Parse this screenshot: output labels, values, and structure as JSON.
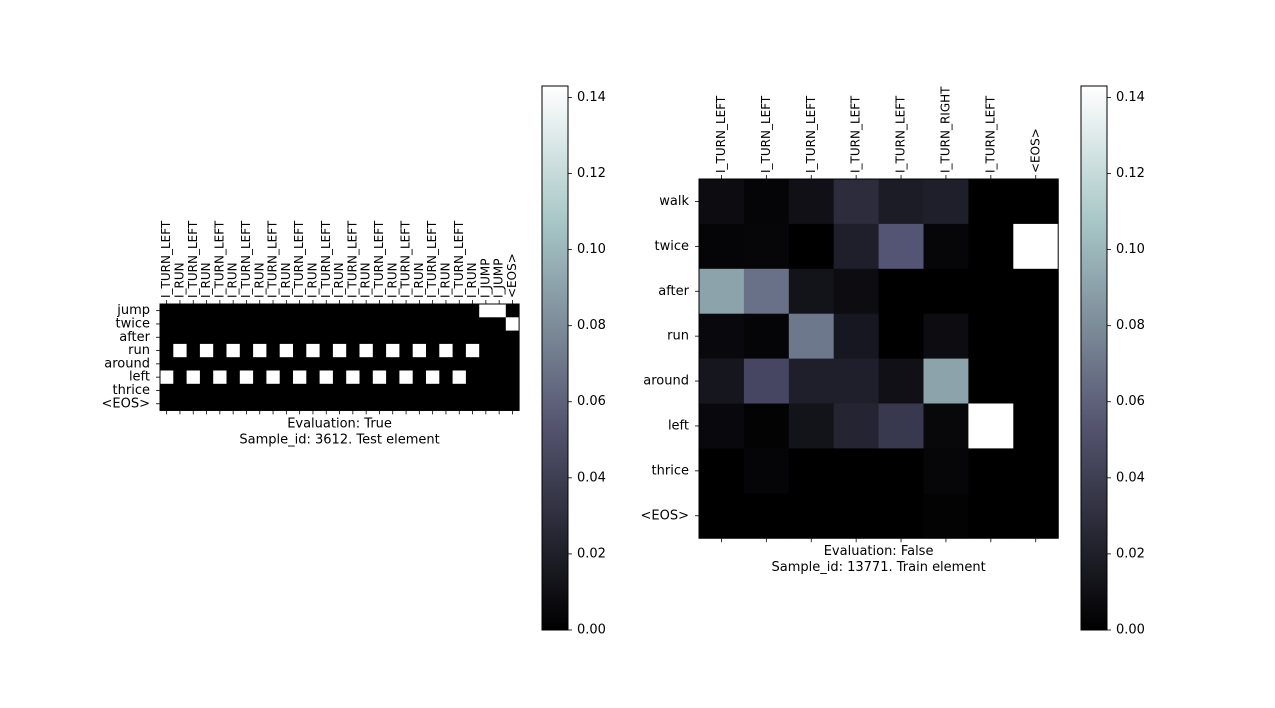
{
  "chart_data": [
    {
      "type": "heatmap",
      "x_labels": [
        "I_TURN_LEFT",
        "I_RUN",
        "I_TURN_LEFT",
        "I_RUN",
        "I_TURN_LEFT",
        "I_RUN",
        "I_TURN_LEFT",
        "I_RUN",
        "I_TURN_LEFT",
        "I_RUN",
        "I_TURN_LEFT",
        "I_RUN",
        "I_TURN_LEFT",
        "I_RUN",
        "I_TURN_LEFT",
        "I_RUN",
        "I_TURN_LEFT",
        "I_RUN",
        "I_TURN_LEFT",
        "I_RUN",
        "I_TURN_LEFT",
        "I_RUN",
        "I_TURN_LEFT",
        "I_RUN",
        "I_JUMP",
        "I_JUMP",
        "<EOS>"
      ],
      "y_labels": [
        "jump",
        "twice",
        "after",
        "run",
        "around",
        "left",
        "thrice",
        "<EOS>"
      ],
      "values": [
        [
          0,
          0,
          0,
          0,
          0,
          0,
          0,
          0,
          0,
          0,
          0,
          0,
          0,
          0,
          0,
          0,
          0,
          0,
          0,
          0,
          0,
          0,
          0,
          0,
          0.143,
          0.143,
          0
        ],
        [
          0,
          0,
          0,
          0,
          0,
          0,
          0,
          0,
          0,
          0,
          0,
          0,
          0,
          0,
          0,
          0,
          0,
          0,
          0,
          0,
          0,
          0,
          0,
          0,
          0,
          0,
          0.143
        ],
        [
          0,
          0,
          0,
          0,
          0,
          0,
          0,
          0,
          0,
          0,
          0,
          0,
          0,
          0,
          0,
          0,
          0,
          0,
          0,
          0,
          0,
          0,
          0,
          0,
          0,
          0,
          0
        ],
        [
          0,
          0.143,
          0,
          0.143,
          0,
          0.143,
          0,
          0.143,
          0,
          0.143,
          0,
          0.143,
          0,
          0.143,
          0,
          0.143,
          0,
          0.143,
          0,
          0.143,
          0,
          0.143,
          0,
          0.143,
          0,
          0,
          0
        ],
        [
          0,
          0,
          0,
          0,
          0,
          0,
          0,
          0,
          0,
          0,
          0,
          0,
          0,
          0,
          0,
          0,
          0,
          0,
          0,
          0,
          0,
          0,
          0,
          0,
          0,
          0,
          0
        ],
        [
          0.143,
          0,
          0.143,
          0,
          0.143,
          0,
          0.143,
          0,
          0.143,
          0,
          0.143,
          0,
          0.143,
          0,
          0.143,
          0,
          0.143,
          0,
          0.143,
          0,
          0.143,
          0,
          0.143,
          0,
          0,
          0,
          0
        ],
        [
          0,
          0,
          0,
          0,
          0,
          0,
          0,
          0,
          0,
          0,
          0,
          0,
          0,
          0,
          0,
          0,
          0,
          0,
          0,
          0,
          0,
          0,
          0,
          0,
          0,
          0,
          0
        ],
        [
          0,
          0,
          0,
          0,
          0,
          0,
          0,
          0,
          0,
          0,
          0,
          0,
          0,
          0,
          0,
          0,
          0,
          0,
          0,
          0,
          0,
          0,
          0,
          0,
          0,
          0,
          0
        ]
      ],
      "xlabel": "Evaluation: True",
      "caption": "Sample_id: 3612. Test element",
      "colorbar": {
        "vmin": 0,
        "vmax": 0.143,
        "ticks": [
          0,
          0.02,
          0.04,
          0.06,
          0.08,
          0.1,
          0.12,
          0.14
        ],
        "tick_labels": [
          "0.00",
          "0.02",
          "0.04",
          "0.06",
          "0.08",
          "0.10",
          "0.12",
          "0.14"
        ]
      },
      "colormap": "bone"
    },
    {
      "type": "heatmap",
      "x_labels": [
        "I_TURN_LEFT",
        "I_TURN_LEFT",
        "I_TURN_LEFT",
        "I_TURN_LEFT",
        "I_TURN_LEFT",
        "I_TURN_RIGHT",
        "I_TURN_LEFT",
        "<EOS>"
      ],
      "y_labels": [
        "walk",
        "twice",
        "after",
        "run",
        "around",
        "left",
        "thrice",
        "<EOS>"
      ],
      "values": [
        [
          0.008,
          0.003,
          0.01,
          0.028,
          0.018,
          0.02,
          0,
          0
        ],
        [
          0.003,
          0.004,
          0,
          0.02,
          0.054,
          0.004,
          0,
          0.143
        ],
        [
          0.09,
          0.067,
          0.012,
          0.008,
          0,
          0,
          0,
          0
        ],
        [
          0.006,
          0.003,
          0.07,
          0.015,
          0,
          0.008,
          0,
          0
        ],
        [
          0.014,
          0.045,
          0.02,
          0.02,
          0.01,
          0.09,
          0,
          0
        ],
        [
          0.006,
          0.002,
          0.012,
          0.023,
          0.036,
          0.005,
          0.143,
          0
        ],
        [
          0,
          0.003,
          0,
          0,
          0,
          0.004,
          0,
          0
        ],
        [
          0,
          0,
          0,
          0,
          0,
          0.002,
          0,
          0
        ]
      ],
      "xlabel": "Evaluation: False",
      "caption": "Sample_id: 13771. Train element",
      "colorbar": {
        "vmin": 0,
        "vmax": 0.143,
        "ticks": [
          0,
          0.02,
          0.04,
          0.06,
          0.08,
          0.1,
          0.12,
          0.14
        ],
        "tick_labels": [
          "0.00",
          "0.02",
          "0.04",
          "0.06",
          "0.08",
          "0.10",
          "0.12",
          "0.14"
        ]
      },
      "colormap": "bone"
    }
  ]
}
